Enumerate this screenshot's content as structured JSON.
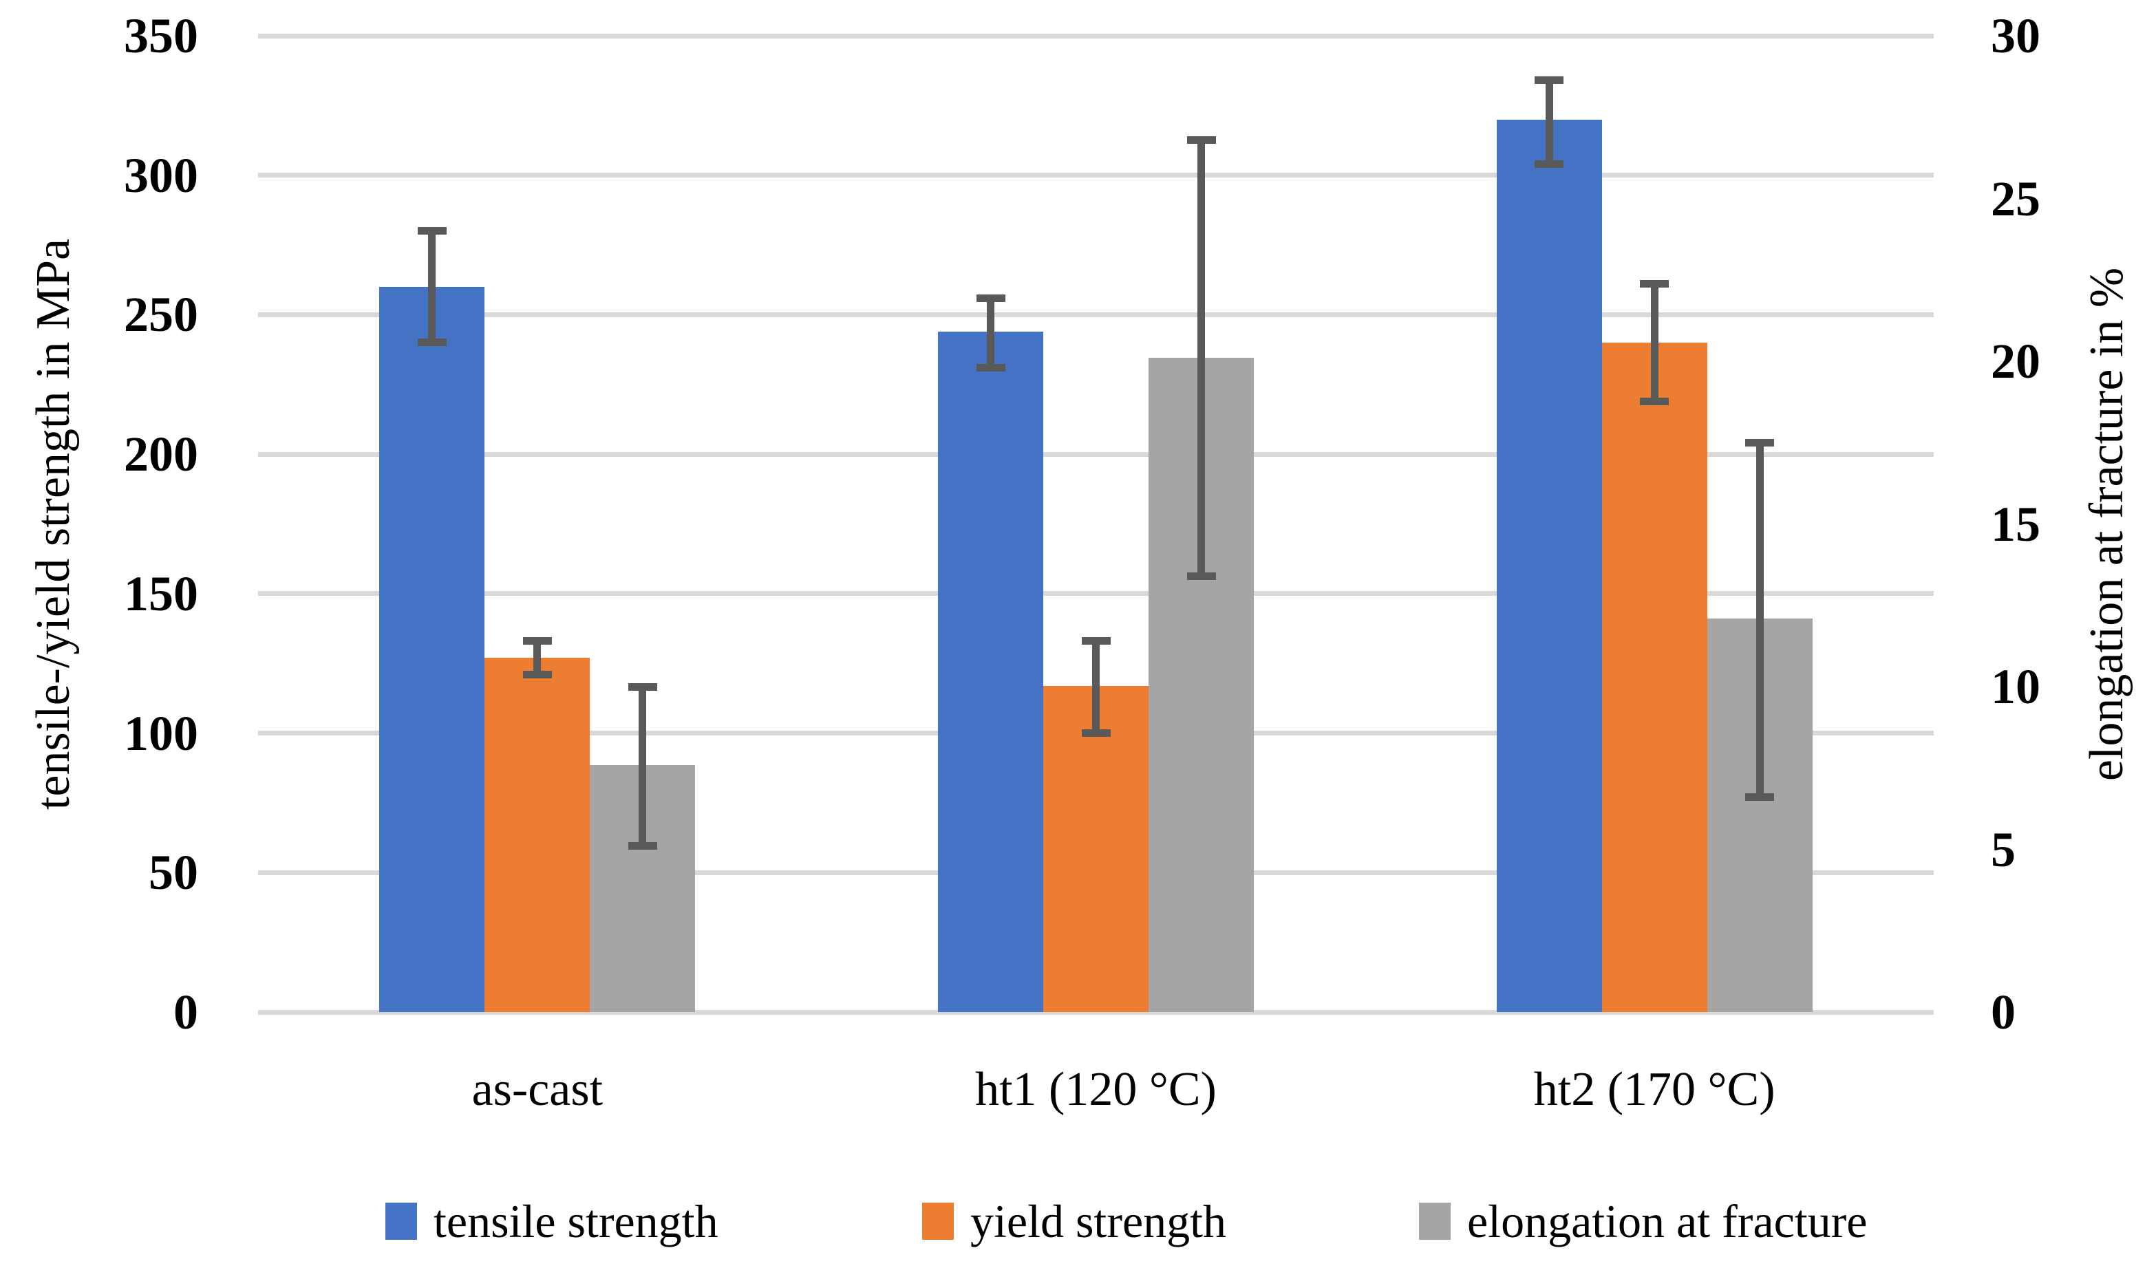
{
  "chart_data": {
    "type": "bar",
    "categories": [
      "as-cast",
      "ht1 (120 °C)",
      "ht2 (170 °C)"
    ],
    "series": [
      {
        "name": "tensile strength",
        "axis": "left",
        "color": "#4472C4",
        "values": [
          260,
          244,
          320
        ],
        "error_low": [
          240,
          231,
          304
        ],
        "error_high": [
          280,
          256,
          334
        ]
      },
      {
        "name": "yield strength",
        "axis": "left",
        "color": "#ED7D31",
        "values": [
          127,
          117,
          240
        ],
        "error_low": [
          121,
          100,
          219
        ],
        "error_high": [
          133,
          133,
          261
        ]
      },
      {
        "name": "elongation at fracture",
        "axis": "right",
        "color": "#A5A5A5",
        "values": [
          7.6,
          20.1,
          12.1
        ],
        "error_low": [
          5.1,
          13.4,
          6.6
        ],
        "error_high": [
          10.0,
          26.8,
          17.5
        ]
      }
    ],
    "left_axis": {
      "label": "tensile-/yield strength in MPa",
      "min": 0,
      "max": 350,
      "step": 50,
      "ticks": [
        "0",
        "50",
        "100",
        "150",
        "200",
        "250",
        "300",
        "350"
      ]
    },
    "right_axis": {
      "label": "elongation at fracture in %",
      "min": 0,
      "max": 30,
      "step": 5,
      "ticks": [
        "0",
        "5",
        "10",
        "15",
        "20",
        "25",
        "30"
      ]
    },
    "grid": true,
    "legend_position": "bottom",
    "colors": {
      "gridline": "#D9D9D9",
      "error_bar": "#595959",
      "text": "#000000",
      "background": "#FFFFFF"
    }
  }
}
